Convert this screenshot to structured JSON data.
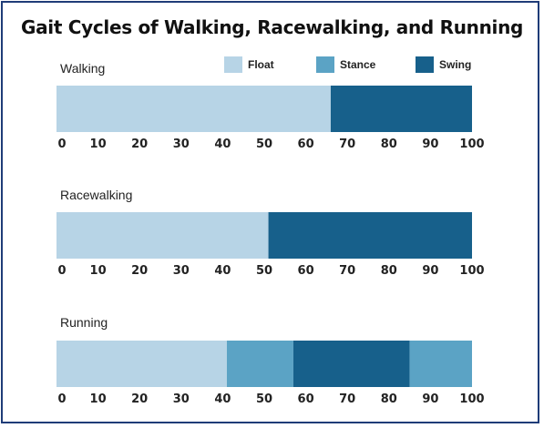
{
  "chart_data": {
    "type": "bar",
    "orientation": "horizontal",
    "stacked": true,
    "title": "Gait Cycles of Walking, Racewalking, and Running",
    "legend": [
      {
        "name": "Float",
        "color": "#b7d4e6"
      },
      {
        "name": "Stance",
        "color": "#5ba3c5"
      },
      {
        "name": "Swing",
        "color": "#17608b"
      }
    ],
    "xlim": [
      0,
      100
    ],
    "xticks": [
      "0",
      "10",
      "20",
      "30",
      "40",
      "50",
      "60",
      "70",
      "80",
      "90",
      "100"
    ],
    "panels": [
      {
        "label": "Walking",
        "segments": [
          {
            "phase": "Float",
            "start": 0,
            "end": 66
          },
          {
            "phase": "Swing",
            "start": 66,
            "end": 100
          }
        ]
      },
      {
        "label": "Racewalking",
        "segments": [
          {
            "phase": "Float",
            "start": 0,
            "end": 51
          },
          {
            "phase": "Swing",
            "start": 51,
            "end": 100
          }
        ]
      },
      {
        "label": "Running",
        "segments": [
          {
            "phase": "Float",
            "start": 0,
            "end": 41
          },
          {
            "phase": "Stance",
            "start": 41,
            "end": 57
          },
          {
            "phase": "Swing",
            "start": 57,
            "end": 85
          },
          {
            "phase": "Stance",
            "start": 85,
            "end": 100
          }
        ]
      }
    ]
  }
}
